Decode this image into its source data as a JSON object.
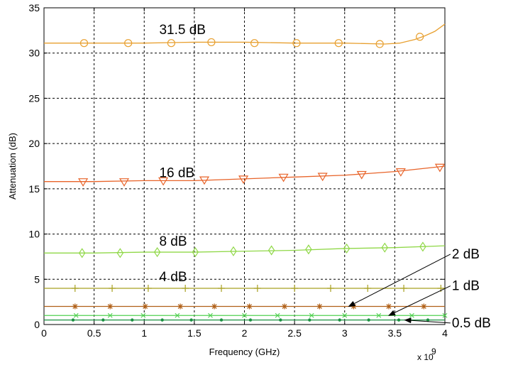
{
  "chart_data": {
    "type": "line",
    "title": "",
    "xlabel": "Frequency (GHz)",
    "ylabel": "Attenuation (dB)",
    "x_multiplier_label": "x 10",
    "x_multiplier_exponent": "9",
    "xlim": [
      0,
      4
    ],
    "ylim": [
      0,
      35
    ],
    "x_ticks": [
      "0",
      "0.5",
      "1",
      "1.5",
      "2",
      "2.5",
      "3",
      "3.5",
      "4"
    ],
    "y_ticks": [
      "0",
      "5",
      "10",
      "15",
      "20",
      "25",
      "30",
      "35"
    ],
    "grid": true,
    "series": [
      {
        "name": "31.5 dB",
        "color": "#e8a030",
        "marker": "circle",
        "x": [
          0,
          0.5,
          1,
          1.5,
          2,
          2.5,
          3,
          3.4,
          3.55,
          3.7,
          3.8,
          3.9,
          4
        ],
        "y": [
          31.1,
          31.1,
          31.1,
          31.2,
          31.2,
          31.1,
          31.1,
          31.0,
          31.1,
          31.5,
          31.9,
          32.4,
          33.2
        ],
        "marker_x": [
          0.4,
          0.84,
          1.27,
          1.67,
          2.1,
          2.52,
          2.94,
          3.35,
          3.75
        ],
        "marker_y": [
          31.1,
          31.1,
          31.1,
          31.2,
          31.1,
          31.1,
          31.1,
          31.0,
          31.8
        ]
      },
      {
        "name": "16 dB",
        "color": "#e8642a",
        "marker": "triangle-down",
        "x": [
          0,
          0.5,
          1,
          1.5,
          2,
          2.5,
          3,
          3.5,
          4
        ],
        "y": [
          15.8,
          15.8,
          15.9,
          15.9,
          16.1,
          16.3,
          16.5,
          16.9,
          17.5
        ],
        "marker_x": [
          0.39,
          0.8,
          1.19,
          1.6,
          1.99,
          2.39,
          2.78,
          3.17,
          3.56,
          3.95
        ],
        "marker_y": [
          15.8,
          15.8,
          15.9,
          16.0,
          16.1,
          16.3,
          16.4,
          16.6,
          16.9,
          17.4
        ]
      },
      {
        "name": "8 dB",
        "color": "#90d848",
        "marker": "diamond",
        "x": [
          0,
          0.5,
          1,
          1.5,
          2,
          2.5,
          3,
          3.5,
          4
        ],
        "y": [
          7.9,
          7.9,
          8.0,
          8.0,
          8.1,
          8.2,
          8.4,
          8.5,
          8.7
        ],
        "marker_x": [
          0.38,
          0.76,
          1.13,
          1.51,
          1.89,
          2.27,
          2.64,
          3.02,
          3.4,
          3.78
        ],
        "marker_y": [
          7.9,
          7.9,
          8.0,
          8.0,
          8.1,
          8.2,
          8.3,
          8.4,
          8.5,
          8.6
        ]
      },
      {
        "name": "4 dB",
        "color": "#a8a020",
        "marker": "plus",
        "x": [
          0,
          4
        ],
        "y": [
          4.0,
          4.0
        ],
        "marker_x": [
          0.31,
          0.68,
          1.04,
          1.41,
          1.77,
          2.13,
          2.5,
          2.86,
          3.23,
          3.59,
          3.96
        ],
        "marker_y": [
          4.0,
          4.0,
          4.0,
          4.0,
          4.0,
          4.0,
          4.0,
          4.0,
          4.0,
          4.0,
          4.0
        ]
      },
      {
        "name": "2 dB",
        "color": "#b06018",
        "marker": "star",
        "x": [
          0,
          4
        ],
        "y": [
          2.0,
          2.0
        ],
        "marker_x": [
          0.31,
          0.66,
          1.01,
          1.36,
          1.7,
          2.05,
          2.4,
          2.75,
          3.09,
          3.44,
          3.79
        ],
        "marker_y": [
          2.0,
          2.0,
          2.0,
          2.0,
          2.0,
          2.0,
          2.0,
          2.0,
          2.0,
          2.0,
          2.0
        ]
      },
      {
        "name": "1 dB",
        "color": "#50d050",
        "marker": "x",
        "x": [
          0,
          4
        ],
        "y": [
          1.0,
          1.0
        ],
        "marker_x": [
          0.32,
          0.66,
          0.99,
          1.33,
          1.66,
          2.0,
          2.33,
          2.67,
          3.0,
          3.34,
          3.67,
          4.0
        ],
        "marker_y": [
          1.0,
          1.0,
          1.0,
          1.0,
          1.0,
          1.0,
          1.0,
          1.0,
          1.0,
          1.0,
          1.0,
          1.0
        ]
      },
      {
        "name": "0.5 dB",
        "color": "#1a9040",
        "marker": "dot",
        "x": [
          0,
          4
        ],
        "y": [
          0.5,
          0.5
        ],
        "marker_x": [
          0.29,
          0.59,
          0.88,
          1.18,
          1.47,
          1.77,
          2.06,
          2.36,
          2.65,
          2.95,
          3.24,
          3.54,
          3.83
        ],
        "marker_y": [
          0.5,
          0.5,
          0.5,
          0.5,
          0.5,
          0.5,
          0.5,
          0.5,
          0.5,
          0.5,
          0.5,
          0.5,
          0.5
        ]
      }
    ],
    "annotations": [
      {
        "text": "31.5 dB",
        "x": 1.15,
        "y": 32.1,
        "arrow": false
      },
      {
        "text": "16 dB",
        "x": 1.15,
        "y": 16.3,
        "arrow": false
      },
      {
        "text": "8 dB",
        "x": 1.15,
        "y": 8.7,
        "arrow": false
      },
      {
        "text": "4 dB",
        "x": 1.15,
        "y": 4.8,
        "arrow": false
      },
      {
        "text": "2 dB",
        "x": 4.07,
        "y": 7.3,
        "arrow": true,
        "arrow_x": 3.04,
        "arrow_y": 2.0
      },
      {
        "text": "1 dB",
        "x": 4.07,
        "y": 3.8,
        "arrow": true,
        "arrow_x": 3.44,
        "arrow_y": 1.0
      },
      {
        "text": "0.5 dB",
        "x": 4.07,
        "y": -0.3,
        "arrow": true,
        "arrow_x": 3.6,
        "arrow_y": 0.5
      }
    ]
  }
}
